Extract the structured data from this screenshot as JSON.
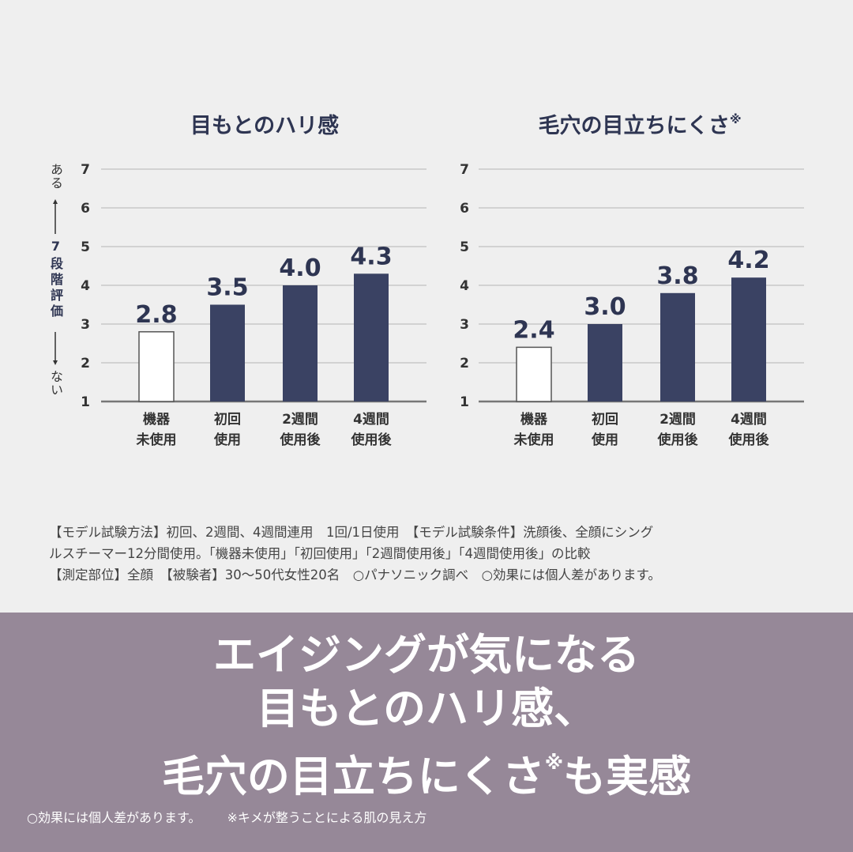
{
  "chart_data": [
    {
      "type": "bar",
      "title": "目もとのハリ感",
      "title_mark": "",
      "categories": [
        "機器\n未使用",
        "初回\n使用",
        "2週間\n使用後",
        "4週間\n使用後"
      ],
      "values": [
        2.8,
        3.5,
        4.0,
        4.3
      ],
      "labels": [
        "2.8",
        "3.5",
        "4.0",
        "4.3"
      ],
      "ylim": [
        1,
        7
      ],
      "yticks": [
        "1",
        "2",
        "3",
        "4",
        "5",
        "6",
        "7"
      ],
      "ylabel_top": "ある",
      "ylabel_mid": "7段階評価",
      "ylabel_bottom": "ない",
      "grid": true,
      "bar_colors": [
        "#ffffff",
        "#3a4263",
        "#3a4263",
        "#3a4263"
      ]
    },
    {
      "type": "bar",
      "title": "毛穴の目立ちにくさ",
      "title_mark": "※",
      "categories": [
        "機器\n未使用",
        "初回\n使用",
        "2週間\n使用後",
        "4週間\n使用後"
      ],
      "values": [
        2.4,
        3.0,
        3.8,
        4.2
      ],
      "labels": [
        "2.4",
        "3.0",
        "3.8",
        "4.2"
      ],
      "ylim": [
        1,
        7
      ],
      "yticks": [
        "1",
        "2",
        "3",
        "4",
        "5",
        "6",
        "7"
      ],
      "grid": true,
      "bar_colors": [
        "#ffffff",
        "#3a4263",
        "#3a4263",
        "#3a4263"
      ]
    }
  ],
  "colors": {
    "text": "#2e3552",
    "bar": "#3a4263",
    "banner": "#968898",
    "grid": "#c8c8c8"
  },
  "notes": [
    "【モデル試験方法】初回、2週間、4週間連用　1回/1日使用　【モデル試験条件】洗顔後、全顔にシング",
    "ルスチーマー12分間使用。「機器未使用」「初回使用」「2週間使用後」「4週間使用後」の比較",
    "【測定部位】全顔　【被験者】30〜50代女性20名　○パナソニック調べ　○効果には個人差があります。"
  ],
  "banner": {
    "line1": "エイジングが気になる",
    "line2": "目もとのハリ感、",
    "line3a": "毛穴の目立ちにくさ",
    "line3mark": "※",
    "line3b": "も実感",
    "foot1": "○効果には個人差があります。",
    "foot2": "※キメが整うことによる肌の見え方"
  }
}
